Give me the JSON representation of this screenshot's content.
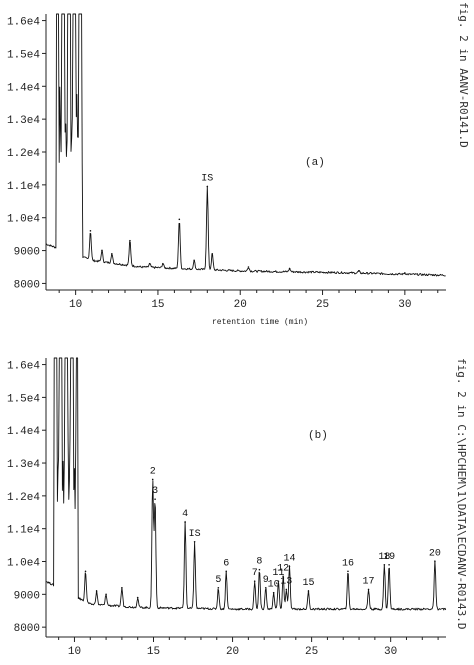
{
  "chart_data": [
    {
      "type": "line",
      "panel_label": "(a)",
      "xlabel": "retention time (min)",
      "ylabel": "",
      "xlim": [
        8.2,
        32.5
      ],
      "ylim": [
        7800,
        16200
      ],
      "x_ticks": [
        10,
        15,
        20,
        25,
        30
      ],
      "x_tick_labels": [
        "10",
        "15",
        "20",
        "25",
        "30"
      ],
      "y_ticks": [
        8000,
        9000,
        10000,
        11000,
        12000,
        13000,
        14000,
        15000,
        16000
      ],
      "y_tick_labels": [
        "8000",
        "9000",
        "1.0e4",
        "1.1e4",
        "1.2e4",
        "1.3e4",
        "1.4e4",
        "1.5e4",
        "1.6e4"
      ],
      "grid": false,
      "side_label": "fig. 2 in AANV-R0141.D",
      "baseline": [
        [
          8.2,
          9200
        ],
        [
          11,
          8700
        ],
        [
          14,
          8500
        ],
        [
          20,
          8380
        ],
        [
          26,
          8330
        ],
        [
          32.5,
          8250
        ]
      ],
      "saturated_region": [
        8.8,
        10.4
      ],
      "peaks": [
        {
          "x": 10.9,
          "y": 9600
        },
        {
          "x": 11.6,
          "y": 9000
        },
        {
          "x": 12.2,
          "y": 8900
        },
        {
          "x": 13.3,
          "y": 9300
        },
        {
          "x": 14.5,
          "y": 8600
        },
        {
          "x": 15.3,
          "y": 8600
        },
        {
          "x": 16.3,
          "y": 9950
        },
        {
          "x": 17.2,
          "y": 8700
        },
        {
          "x": 18.0,
          "y": 10950,
          "label": "IS"
        },
        {
          "x": 18.3,
          "y": 8900
        },
        {
          "x": 20.5,
          "y": 8500
        },
        {
          "x": 23.0,
          "y": 8450
        },
        {
          "x": 27.2,
          "y": 8380
        },
        {
          "x": 30.0,
          "y": 8320
        }
      ]
    },
    {
      "type": "line",
      "panel_label": "(b)",
      "xlabel": "",
      "ylabel": "",
      "xlim": [
        8.2,
        33.5
      ],
      "ylim": [
        7700,
        16200
      ],
      "x_ticks": [
        10,
        15,
        20,
        25,
        30
      ],
      "x_tick_labels": [
        "10",
        "15",
        "20",
        "25",
        "30"
      ],
      "y_ticks": [
        8000,
        9000,
        10000,
        11000,
        12000,
        13000,
        14000,
        15000,
        16000
      ],
      "y_tick_labels": [
        "8000",
        "9000",
        "1.0e4",
        "1.1e4",
        "1.2e4",
        "1.3e4",
        "1.4e4",
        "1.5e4",
        "1.6e4"
      ],
      "grid": false,
      "side_label": "fig. 2 in C:\\HPCHEM\\1\\DATA\\ECDANV-R0143.D",
      "baseline": [
        [
          8.2,
          9400
        ],
        [
          11,
          8700
        ],
        [
          14,
          8600
        ],
        [
          20,
          8550
        ],
        [
          26,
          8550
        ],
        [
          33.5,
          8550
        ]
      ],
      "saturated_region": [
        8.7,
        10.2
      ],
      "peaks": [
        {
          "x": 10.7,
          "y": 9700
        },
        {
          "x": 11.4,
          "y": 9100
        },
        {
          "x": 12.0,
          "y": 9000
        },
        {
          "x": 13.0,
          "y": 9200
        },
        {
          "x": 14.0,
          "y": 8900
        },
        {
          "x": 14.95,
          "y": 12500,
          "label": "2"
        },
        {
          "x": 15.1,
          "y": 11900,
          "label": "3"
        },
        {
          "x": 17.0,
          "y": 11200,
          "label": "4"
        },
        {
          "x": 17.6,
          "y": 10600,
          "label": "IS"
        },
        {
          "x": 19.1,
          "y": 9200,
          "label": "5"
        },
        {
          "x": 19.6,
          "y": 9700,
          "label": "6"
        },
        {
          "x": 21.4,
          "y": 9400,
          "label": "7"
        },
        {
          "x": 21.7,
          "y": 9750,
          "label": "8"
        },
        {
          "x": 22.1,
          "y": 9200,
          "label": "9"
        },
        {
          "x": 22.6,
          "y": 9050,
          "label": "10"
        },
        {
          "x": 22.9,
          "y": 9400,
          "label": "11"
        },
        {
          "x": 23.2,
          "y": 9550,
          "label": "12"
        },
        {
          "x": 23.4,
          "y": 9150,
          "label": "13"
        },
        {
          "x": 23.6,
          "y": 9850,
          "label": "14"
        },
        {
          "x": 24.8,
          "y": 9100,
          "label": "15"
        },
        {
          "x": 27.3,
          "y": 9700,
          "label": "16"
        },
        {
          "x": 28.6,
          "y": 9150,
          "label": "17"
        },
        {
          "x": 29.6,
          "y": 9900,
          "label": "18"
        },
        {
          "x": 29.9,
          "y": 9900,
          "label": "19"
        },
        {
          "x": 32.8,
          "y": 10000,
          "label": "20"
        }
      ]
    }
  ]
}
